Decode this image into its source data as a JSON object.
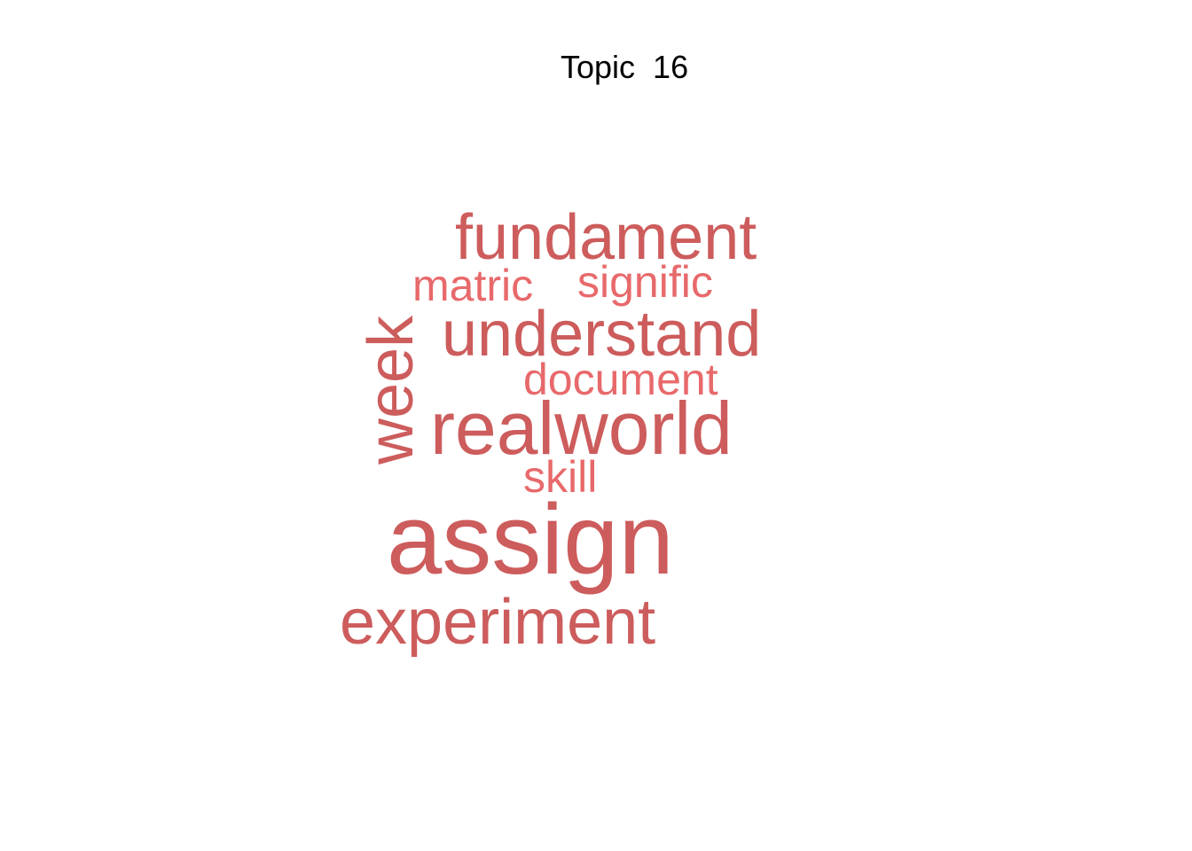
{
  "title": "Topic  16",
  "colors": {
    "primary": "#cd5c5c",
    "secondary": "#e8696b"
  },
  "words": [
    {
      "text": "fundament",
      "weight": 3,
      "rotated": false,
      "tone": "primary"
    },
    {
      "text": "matric",
      "weight": 1,
      "rotated": false,
      "tone": "secondary"
    },
    {
      "text": "signific",
      "weight": 1,
      "rotated": false,
      "tone": "secondary"
    },
    {
      "text": "understand",
      "weight": 3,
      "rotated": false,
      "tone": "primary"
    },
    {
      "text": "week",
      "weight": 3,
      "rotated": true,
      "tone": "primary"
    },
    {
      "text": "document",
      "weight": 1,
      "rotated": false,
      "tone": "secondary"
    },
    {
      "text": "realworld",
      "weight": 4,
      "rotated": false,
      "tone": "primary"
    },
    {
      "text": "skill",
      "weight": 1,
      "rotated": false,
      "tone": "secondary"
    },
    {
      "text": "assign",
      "weight": 5,
      "rotated": false,
      "tone": "primary"
    },
    {
      "text": "experiment",
      "weight": 3,
      "rotated": false,
      "tone": "primary"
    }
  ]
}
